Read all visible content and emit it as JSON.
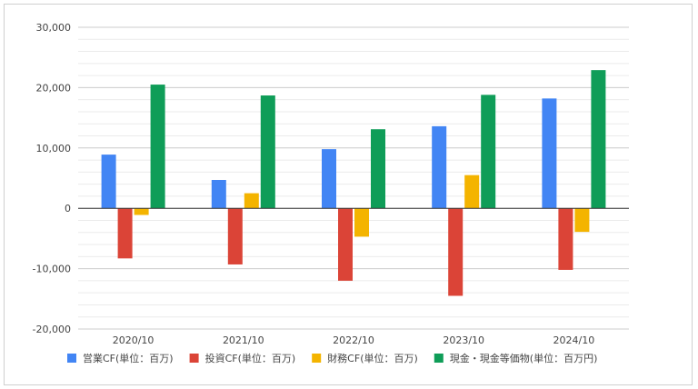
{
  "chart_data": {
    "type": "bar",
    "categories": [
      "2020/10",
      "2021/10",
      "2022/10",
      "2023/10",
      "2024/10"
    ],
    "series": [
      {
        "name": "営業CF(単位：百万)",
        "color": "#4285f4",
        "values": [
          8900,
          4700,
          9800,
          13600,
          18200
        ]
      },
      {
        "name": "投資CF(単位：百万)",
        "color": "#db4437",
        "values": [
          -8300,
          -9300,
          -12000,
          -14500,
          -10200
        ]
      },
      {
        "name": "財務CF(単位：百万)",
        "color": "#f4b400",
        "values": [
          -1100,
          2500,
          -4700,
          5500,
          -3900
        ]
      },
      {
        "name": "現金・現金等価物(単位：百万円)",
        "color": "#0f9d58",
        "values": [
          20500,
          18700,
          13100,
          18800,
          22900
        ]
      }
    ],
    "yticks": [
      "30,000",
      "20,000",
      "10,000",
      "0",
      "-10,000",
      "-20,000"
    ],
    "ytick_values": [
      30000,
      20000,
      10000,
      0,
      -10000,
      -20000
    ],
    "ylim": [
      -20000,
      30000
    ],
    "minor_grid_step": 2000,
    "legend_position": "bottom"
  }
}
